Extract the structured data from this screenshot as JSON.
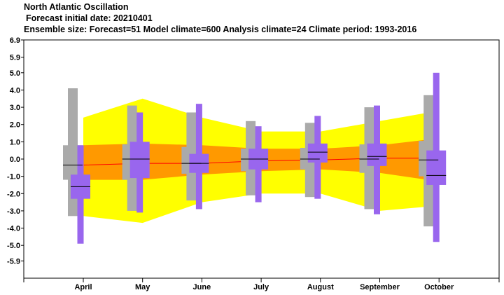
{
  "header": {
    "title": "North Atlantic Oscillation",
    "subtitle": "Forecast initial date: 20210401",
    "info": "Ensemble size: Forecast=51 Model climate=600 Analysis climate=24   Climate period: 1993-2016"
  },
  "chart_data": {
    "type": "box",
    "categories": [
      "April",
      "May",
      "June",
      "July",
      "August",
      "September",
      "October"
    ],
    "ylim": [
      -6.9,
      6.9
    ],
    "yticks": [
      6.9,
      5.9,
      5.0,
      4.0,
      3.0,
      2.0,
      1.0,
      0.0,
      -1.0,
      -2.0,
      -3.0,
      -4.0,
      -5.0,
      -5.9
    ],
    "ytick_labels": [
      "6.9",
      "5.9",
      "5.0",
      "4.0",
      "3.0",
      "2.0",
      "1.0",
      "0.0",
      "-1.0",
      "-2.0",
      "-3.0",
      "-4.0",
      "-5.0",
      "-5.9"
    ],
    "grid": false,
    "colors": {
      "outer_band": "#ffff00",
      "inner_band": "#ff9900",
      "model_climate": "#aaaaaa",
      "forecast": "#9966ee",
      "median_line": "#ff0000"
    },
    "climate_outer_band": {
      "upper": [
        2.4,
        3.5,
        2.4,
        1.6,
        1.6,
        2.2,
        2.8
      ],
      "lower": [
        -3.3,
        -3.7,
        -2.5,
        -2.0,
        -2.0,
        -3.0,
        -2.7
      ]
    },
    "climate_inner_band": {
      "upper": [
        0.8,
        0.9,
        0.8,
        0.6,
        0.6,
        0.8,
        1.2
      ],
      "lower": [
        -1.2,
        -1.2,
        -0.9,
        -0.7,
        -0.6,
        -0.8,
        -1.3
      ]
    },
    "climate_median": [
      -0.35,
      -0.25,
      -0.25,
      -0.1,
      -0.05,
      0.05,
      0.05
    ],
    "model_climate": [
      {
        "min": -3.3,
        "q10": -1.2,
        "q25": -0.85,
        "median": -0.35,
        "q75": 0.25,
        "q90": 0.8,
        "max": 4.1
      },
      {
        "min": -3.0,
        "q10": -1.2,
        "q25": -0.8,
        "median": 0.0,
        "q75": 0.5,
        "q90": 0.85,
        "max": 3.1
      },
      {
        "min": -2.4,
        "q10": -0.85,
        "q25": -0.5,
        "median": -0.25,
        "q75": 0.3,
        "q90": 0.7,
        "max": 2.7
      },
      {
        "min": -2.1,
        "q10": -0.7,
        "q25": -0.4,
        "median": 0.0,
        "q75": 0.4,
        "q90": 0.6,
        "max": 2.2
      },
      {
        "min": -2.2,
        "q10": -0.6,
        "q25": -0.3,
        "median": 0.0,
        "q75": 0.45,
        "q90": 0.65,
        "max": 2.1
      },
      {
        "min": -2.9,
        "q10": -0.8,
        "q25": -0.45,
        "median": 0.0,
        "q75": 0.5,
        "q90": 0.85,
        "max": 3.0
      },
      {
        "min": -3.9,
        "q10": -1.0,
        "q25": -0.6,
        "median": -0.05,
        "q75": 0.5,
        "q90": 1.05,
        "max": 3.7
      }
    ],
    "forecast": [
      {
        "min": -4.9,
        "q25": -2.3,
        "median": -1.6,
        "q75": -0.9,
        "max": 0.8
      },
      {
        "min": -3.1,
        "q25": -1.1,
        "median": 0.0,
        "q75": 1.0,
        "max": 2.7
      },
      {
        "min": -2.9,
        "q25": -0.8,
        "median": -0.25,
        "q75": 0.3,
        "max": 3.2
      },
      {
        "min": -2.5,
        "q25": -0.6,
        "median": 0.0,
        "q75": 0.6,
        "max": 1.9
      },
      {
        "min": -2.3,
        "q25": -0.2,
        "median": 0.4,
        "q75": 0.9,
        "max": 2.5
      },
      {
        "min": -3.2,
        "q25": -0.4,
        "median": 0.15,
        "q75": 0.9,
        "max": 3.1
      },
      {
        "min": -4.8,
        "q25": -1.5,
        "median": -0.95,
        "q75": 0.5,
        "max": 5.0
      }
    ]
  }
}
